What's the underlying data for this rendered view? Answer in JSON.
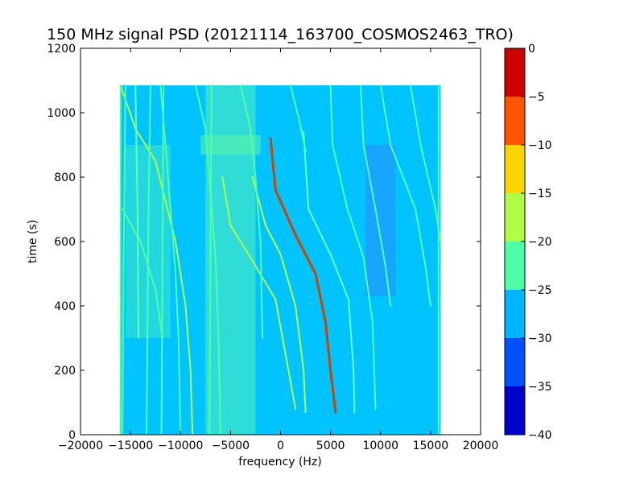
{
  "chart_data": {
    "type": "heatmap",
    "title": "150 MHz signal PSD (20121114_163700_COSMOS2463_TRO)",
    "xlabel": "frequency (Hz)",
    "ylabel": "time (s)",
    "xlim": [
      -20000,
      20000
    ],
    "ylim": [
      0,
      1200
    ],
    "xticks": [
      "−20000",
      "−15000",
      "−10000",
      "−5000",
      "0",
      "5000",
      "10000",
      "15000",
      "20000"
    ],
    "yticks": [
      "0",
      "200",
      "400",
      "600",
      "800",
      "1000",
      "1200"
    ],
    "data_extent": {
      "x": [
        -16000,
        16000
      ],
      "y": [
        0,
        1085
      ]
    },
    "colorbar": {
      "range": [
        -40,
        0
      ],
      "ticks": [
        "0",
        "−5",
        "−10",
        "−15",
        "−20",
        "−25",
        "−30",
        "−35",
        "−40"
      ],
      "levels": [
        {
          "from": -40,
          "to": -35,
          "color": "#0000cd"
        },
        {
          "from": -35,
          "to": -30,
          "color": "#0050ff"
        },
        {
          "from": -30,
          "to": -25,
          "color": "#00b4ff"
        },
        {
          "from": -25,
          "to": -20,
          "color": "#4effa8"
        },
        {
          "from": -20,
          "to": -15,
          "color": "#b0ff46"
        },
        {
          "from": -15,
          "to": -10,
          "color": "#ffd500"
        },
        {
          "from": -10,
          "to": -5,
          "color": "#ff5500"
        },
        {
          "from": -5,
          "to": 0,
          "color": "#cc0000"
        }
      ]
    },
    "background_level_color": "#00c3ff",
    "noise_bands": [
      {
        "x": [
          -7500,
          -2500
        ],
        "y": [
          0,
          1085
        ],
        "color": "#55f0b8"
      },
      {
        "x": [
          -15500,
          -11000
        ],
        "y": [
          300,
          900
        ],
        "color": "#40e8c8"
      },
      {
        "x": [
          -8000,
          -2000
        ],
        "y": [
          870,
          930
        ],
        "color": "#5cf5a4"
      },
      {
        "x": [
          8500,
          11500
        ],
        "y": [
          430,
          900
        ],
        "color": "#2a8cff"
      }
    ],
    "traces": [
      {
        "points": [
          [
            -1000,
            920
          ],
          [
            -500,
            760
          ],
          [
            1500,
            620
          ],
          [
            3500,
            500
          ],
          [
            4500,
            350
          ],
          [
            5000,
            200
          ],
          [
            5500,
            70
          ]
        ],
        "color": "#cc4400",
        "level": -8
      },
      {
        "points": [
          [
            -5800,
            800
          ],
          [
            -5000,
            650
          ],
          [
            -3000,
            550
          ],
          [
            -500,
            420
          ],
          [
            500,
            250
          ],
          [
            1500,
            80
          ]
        ],
        "color": "#b0ff46",
        "level": -18
      },
      {
        "points": [
          [
            -2800,
            800
          ],
          [
            -1500,
            650
          ],
          [
            0,
            560
          ],
          [
            1500,
            400
          ],
          [
            2300,
            200
          ],
          [
            2500,
            70
          ]
        ],
        "color": "#b0ff46",
        "level": -18
      },
      {
        "points": [
          [
            2300,
            940
          ],
          [
            2800,
            700
          ],
          [
            5000,
            560
          ],
          [
            6800,
            420
          ],
          [
            7300,
            200
          ],
          [
            7400,
            70
          ]
        ],
        "color": "#66ffaa",
        "level": -22
      },
      {
        "points": [
          [
            5000,
            1085
          ],
          [
            5200,
            900
          ],
          [
            6700,
            700
          ],
          [
            8300,
            550
          ],
          [
            9200,
            350
          ],
          [
            9500,
            80
          ]
        ],
        "color": "#4effa8",
        "level": -22
      },
      {
        "points": [
          [
            8000,
            1085
          ],
          [
            8300,
            900
          ],
          [
            9500,
            700
          ],
          [
            10500,
            520
          ],
          [
            11000,
            400
          ]
        ],
        "color": "#4effa8",
        "level": -22
      },
      {
        "points": [
          [
            10000,
            1085
          ],
          [
            11000,
            900
          ],
          [
            13500,
            700
          ],
          [
            14500,
            520
          ],
          [
            15000,
            400
          ]
        ],
        "color": "#4effa8",
        "level": -22
      },
      {
        "points": [
          [
            13000,
            1085
          ],
          [
            14000,
            900
          ],
          [
            15500,
            700
          ],
          [
            16000,
            600
          ]
        ],
        "color": "#4effa8",
        "level": -22
      },
      {
        "points": [
          [
            -16000,
            1085
          ],
          [
            -14500,
            950
          ],
          [
            -12500,
            850
          ],
          [
            -10500,
            600
          ],
          [
            -9500,
            400
          ],
          [
            -9000,
            200
          ],
          [
            -8800,
            0
          ]
        ],
        "color": "#b0ff46",
        "level": -18
      },
      {
        "points": [
          [
            -12000,
            1085
          ],
          [
            -11500,
            900
          ],
          [
            -11000,
            700
          ],
          [
            -10500,
            500
          ],
          [
            -10200,
            300
          ],
          [
            -10000,
            0
          ]
        ],
        "color": "#4effa8",
        "level": -22
      },
      {
        "points": [
          [
            -15800,
            700
          ],
          [
            -14000,
            600
          ],
          [
            -12500,
            450
          ],
          [
            -11800,
            300
          ]
        ],
        "color": "#4effa8",
        "level": -22
      },
      {
        "points": [
          [
            -8500,
            1085
          ],
          [
            -7500,
            950
          ],
          [
            -7000,
            750
          ],
          [
            -6500,
            550
          ],
          [
            -6200,
            300
          ],
          [
            -6000,
            0
          ]
        ],
        "color": "#4effa8",
        "level": -22
      },
      {
        "points": [
          [
            -4000,
            1085
          ],
          [
            -3000,
            950
          ],
          [
            -2500,
            800
          ],
          [
            -2000,
            600
          ],
          [
            -1800,
            300
          ]
        ],
        "color": "#4effa8",
        "level": -22
      },
      {
        "points": [
          [
            1000,
            1085
          ],
          [
            2000,
            960
          ],
          [
            2500,
            880
          ]
        ],
        "color": "#4effa8",
        "level": -22
      },
      {
        "points": [
          [
            -13000,
            1085
          ],
          [
            -13200,
            700
          ],
          [
            -13300,
            300
          ],
          [
            -13400,
            0
          ]
        ],
        "color": "#4effa8",
        "level": -22
      },
      {
        "points": [
          [
            -11700,
            1085
          ],
          [
            -11800,
            600
          ],
          [
            -11900,
            0
          ]
        ],
        "color": "#4effa8",
        "level": -22
      },
      {
        "points": [
          [
            -15500,
            1085
          ],
          [
            -15700,
            500
          ],
          [
            -15800,
            0
          ]
        ],
        "color": "#4effa8",
        "level": -22
      },
      {
        "points": [
          [
            -6900,
            1085
          ],
          [
            -7000,
            600
          ],
          [
            -7100,
            0
          ]
        ],
        "color": "#4effa8",
        "level": -22
      },
      {
        "points": [
          [
            -14500,
            1085
          ],
          [
            -14300,
            700
          ],
          [
            -14200,
            300
          ]
        ],
        "color": "#66ffaa",
        "level": -23
      },
      {
        "points": [
          [
            15800,
            1085
          ],
          [
            15800,
            0
          ]
        ],
        "color": "#4effa8",
        "level": -23
      },
      {
        "points": [
          [
            -16000,
            1085
          ],
          [
            -16000,
            0
          ]
        ],
        "color": "#4effa8",
        "level": -23
      }
    ]
  }
}
